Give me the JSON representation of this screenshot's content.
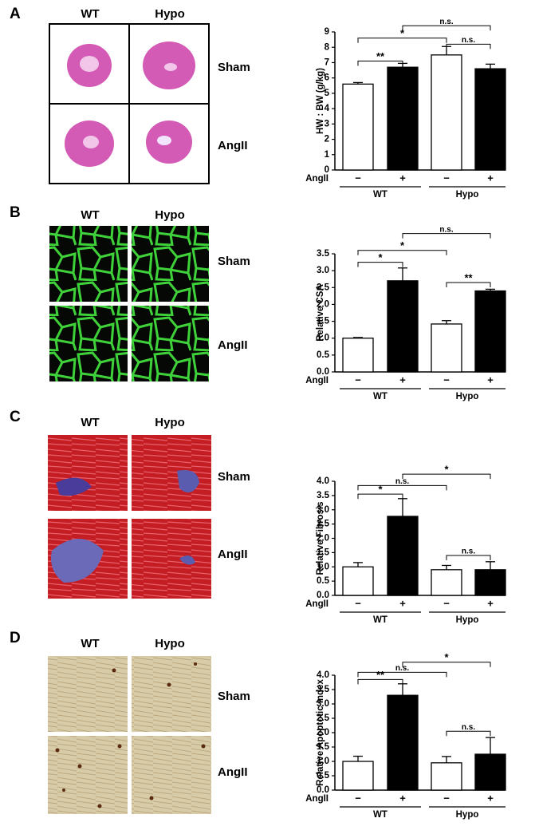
{
  "panels": [
    {
      "letter": "A",
      "columns": [
        "WT",
        "Hypo"
      ],
      "rows": [
        "Sham",
        "AngII"
      ]
    },
    {
      "letter": "B",
      "columns": [
        "WT",
        "Hypo"
      ],
      "rows": [
        "Sham",
        "AngII"
      ]
    },
    {
      "letter": "C",
      "columns": [
        "WT",
        "Hypo"
      ],
      "rows": [
        "Sham",
        "AngII"
      ]
    },
    {
      "letter": "D",
      "columns": [
        "WT",
        "Hypo"
      ],
      "rows": [
        "Sham",
        "AngII"
      ]
    }
  ],
  "chart_data": [
    {
      "type": "bar",
      "ylabel": "HW : BW (g/kg)",
      "ylim": [
        0,
        9
      ],
      "yticks": [
        0,
        1,
        2,
        3,
        4,
        5,
        6,
        7,
        8,
        9
      ],
      "categories": [
        "−",
        "+",
        "−",
        "+"
      ],
      "groups": [
        "WT",
        "Hypo"
      ],
      "row_label": "AngII",
      "values": [
        5.6,
        6.7,
        7.5,
        6.6
      ],
      "errors": [
        0.1,
        0.25,
        0.55,
        0.3
      ],
      "colors": [
        "#ffffff",
        "#000000",
        "#ffffff",
        "#000000"
      ],
      "annotations": [
        "**",
        "*",
        "n.s.",
        "n.s."
      ]
    },
    {
      "type": "bar",
      "ylabel": "Relative CSA",
      "ylim": [
        0,
        3.5
      ],
      "yticks": [
        {
          "value": 0,
          "label": "0.0"
        },
        0.5,
        {
          "value": 1,
          "label": "1.0"
        },
        1.5,
        {
          "value": 2,
          "label": "2.0"
        },
        2.5,
        {
          "value": 3,
          "label": "3.0"
        },
        3.5
      ],
      "categories": [
        "−",
        "+",
        "−",
        "+"
      ],
      "groups": [
        "WT",
        "Hypo"
      ],
      "row_label": "AngII",
      "values": [
        1.0,
        2.7,
        1.42,
        2.4
      ],
      "errors": [
        0.02,
        0.38,
        0.1,
        0.05
      ],
      "colors": [
        "#ffffff",
        "#000000",
        "#ffffff",
        "#000000"
      ],
      "annotations": [
        "*",
        "*",
        "**",
        "n.s."
      ]
    },
    {
      "type": "bar",
      "ylabel": "Relative Fibrosis",
      "ylim": [
        0,
        4
      ],
      "yticks": [
        {
          "value": 0,
          "label": "0.0"
        },
        0.5,
        {
          "value": 1,
          "label": "1.0"
        },
        1.5,
        {
          "value": 2,
          "label": "2.0"
        },
        2.5,
        {
          "value": 3,
          "label": "3.0"
        },
        3.5,
        {
          "value": 4,
          "label": "4.0"
        }
      ],
      "categories": [
        "−",
        "+",
        "−",
        "+"
      ],
      "groups": [
        "WT",
        "Hypo"
      ],
      "row_label": "AngII",
      "values": [
        1.0,
        2.77,
        0.9,
        0.9
      ],
      "errors": [
        0.15,
        0.62,
        0.15,
        0.28
      ],
      "colors": [
        "#ffffff",
        "#000000",
        "#ffffff",
        "#000000"
      ],
      "annotations": [
        "*",
        "n.s.",
        "n.s.",
        "*"
      ]
    },
    {
      "type": "bar",
      "ylabel": "Relative Apoptotic Index",
      "ylim": [
        0,
        4
      ],
      "yticks": [
        {
          "value": 0,
          "label": "0.0"
        },
        0.5,
        {
          "value": 1,
          "label": "1.0"
        },
        1.5,
        {
          "value": 2,
          "label": "2.0"
        },
        2.5,
        {
          "value": 3,
          "label": "3.0"
        },
        3.5,
        {
          "value": 4,
          "label": "4.0"
        }
      ],
      "categories": [
        "−",
        "+",
        "−",
        "+"
      ],
      "groups": [
        "WT",
        "Hypo"
      ],
      "row_label": "AngII",
      "values": [
        1.0,
        3.3,
        0.95,
        1.25
      ],
      "errors": [
        0.18,
        0.4,
        0.22,
        0.58
      ],
      "colors": [
        "#ffffff",
        "#000000",
        "#ffffff",
        "#000000"
      ],
      "annotations": [
        "**",
        "n.s.",
        "n.s.",
        "*"
      ]
    }
  ]
}
